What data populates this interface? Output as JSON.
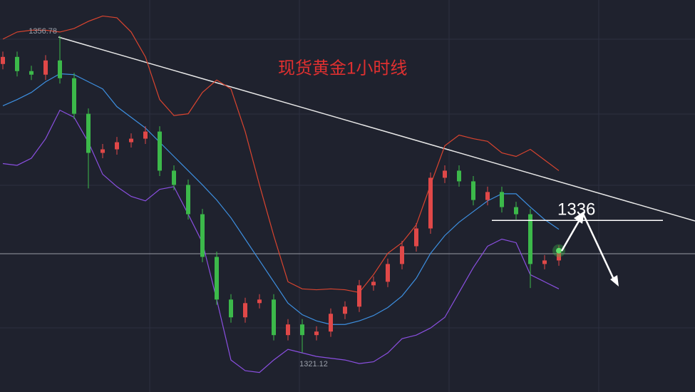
{
  "chart_data": {
    "type": "candlestick",
    "title": "现货黄金1小时线",
    "ylim": [
      1316.7,
      1360.8
    ],
    "up_color": "#e04848",
    "down_color": "#3cb94a",
    "open": [
      1353.6,
      1354.4,
      1352.8,
      1352.4,
      1354.0,
      1352.0,
      1348.0,
      1343.6,
      1344.0,
      1344.8,
      1345.2,
      1346.0,
      1341.6,
      1340.0,
      1336.7,
      1331.9,
      1327.1,
      1325.1,
      1326.7,
      1327.1,
      1323.1,
      1324.3,
      1323.1,
      1323.5,
      1325.5,
      1326.3,
      1328.7,
      1329.1,
      1331.1,
      1333.1,
      1335.1,
      1340.8,
      1341.6,
      1340.4,
      1338.3,
      1339.2,
      1337.5,
      1336.7,
      1331.1,
      1331.5
    ],
    "high": [
      1355.0,
      1355.0,
      1353.4,
      1354.6,
      1356.78,
      1352.6,
      1348.6,
      1344.6,
      1345.4,
      1345.8,
      1346.6,
      1346.6,
      1342.2,
      1340.6,
      1337.3,
      1332.5,
      1327.7,
      1327.3,
      1327.7,
      1327.7,
      1324.9,
      1324.9,
      1324.1,
      1326.1,
      1326.9,
      1329.3,
      1329.7,
      1331.7,
      1333.7,
      1335.7,
      1341.4,
      1342.2,
      1342.2,
      1341.0,
      1339.8,
      1339.8,
      1338.1,
      1337.3,
      1332.1,
      1333.2
    ],
    "low": [
      1353.0,
      1352.2,
      1351.8,
      1351.8,
      1351.4,
      1347.4,
      1339.6,
      1343.0,
      1343.4,
      1344.2,
      1344.6,
      1341.0,
      1339.4,
      1336.1,
      1331.3,
      1326.5,
      1324.5,
      1324.5,
      1326.1,
      1322.5,
      1322.5,
      1321.12,
      1322.5,
      1322.9,
      1324.9,
      1325.7,
      1328.1,
      1328.5,
      1330.5,
      1332.5,
      1334.5,
      1340.2,
      1339.8,
      1337.7,
      1337.7,
      1336.9,
      1336.1,
      1328.4,
      1330.5,
      1330.9
    ],
    "close": [
      1354.4,
      1352.8,
      1352.4,
      1354.0,
      1352.0,
      1348.0,
      1343.6,
      1344.0,
      1344.8,
      1345.2,
      1346.0,
      1341.6,
      1340.0,
      1336.7,
      1331.9,
      1327.1,
      1325.1,
      1326.7,
      1327.1,
      1323.1,
      1324.3,
      1323.1,
      1323.5,
      1325.5,
      1326.3,
      1328.7,
      1329.1,
      1331.1,
      1333.1,
      1335.1,
      1340.8,
      1341.6,
      1340.4,
      1338.3,
      1339.2,
      1337.5,
      1336.7,
      1331.1,
      1331.5,
      1332.6
    ],
    "bands": [
      {
        "color": "#d9442f",
        "values": [
          1356.4,
          1357.2,
          1357.4,
          1357.4,
          1357.2,
          1357.6,
          1358.4,
          1359.0,
          1358.8,
          1357.2,
          1354.4,
          1349.6,
          1347.8,
          1348.0,
          1350.4,
          1351.8,
          1350.8,
          1346.0,
          1340.0,
          1334.3,
          1329.1,
          1328.3,
          1328.2,
          1328.3,
          1328.2,
          1327.9,
          1329.9,
          1332.3,
          1333.5,
          1335.5,
          1340.0,
          1344.4,
          1345.6,
          1345.2,
          1344.9,
          1343.6,
          1343.2,
          1344.0,
          1342.8,
          1341.6
        ]
      },
      {
        "color": "#3d8fe0",
        "values": [
          1348.9,
          1349.6,
          1350.4,
          1351.6,
          1352.5,
          1352.4,
          1351.6,
          1350.8,
          1348.8,
          1347.6,
          1346.4,
          1344.8,
          1343.2,
          1341.6,
          1340.0,
          1338.3,
          1336.3,
          1333.9,
          1331.5,
          1329.1,
          1326.7,
          1325.4,
          1324.7,
          1324.3,
          1324.3,
          1324.7,
          1325.3,
          1326.2,
          1327.5,
          1329.5,
          1332.3,
          1334.3,
          1335.8,
          1337.0,
          1338.2,
          1339.0,
          1339.0,
          1337.5,
          1336.1,
          1335.0
        ]
      },
      {
        "color": "#8a4fe0",
        "values": [
          1342.4,
          1342.2,
          1343.0,
          1345.2,
          1348.4,
          1347.6,
          1344.8,
          1341.2,
          1339.8,
          1338.7,
          1338.2,
          1339.5,
          1339.8,
          1336.7,
          1333.5,
          1327.1,
          1320.3,
          1319.1,
          1318.9,
          1320.3,
          1321.5,
          1321.1,
          1320.7,
          1320.5,
          1320.3,
          1319.9,
          1320.1,
          1321.1,
          1322.7,
          1323.1,
          1323.9,
          1325.1,
          1327.9,
          1330.7,
          1333.1,
          1333.9,
          1333.5,
          1329.9,
          1329.1,
          1328.3
        ]
      }
    ],
    "level": 1336
  }
}
